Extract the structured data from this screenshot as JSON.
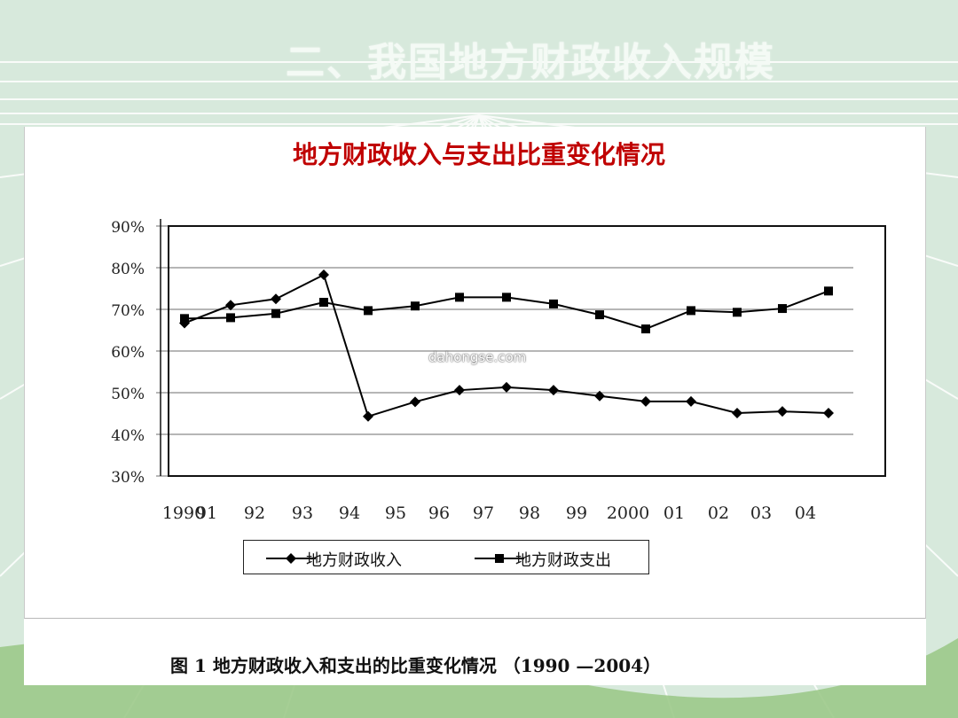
{
  "slide": {
    "title": "二、我国地方财政收入规模"
  },
  "watermark": "dahongse.com",
  "caption": "图 1    地方财政收入和支出的比重变化情况 （1990 —2004）",
  "colors": {
    "line": "#000000",
    "title_red": "#c00000",
    "grid": "#888888",
    "background": "#d7e9dc"
  },
  "chart_data": {
    "type": "line",
    "title": "地方财政收入与支出比重变化情况",
    "categories": [
      "1990",
      "91",
      "92",
      "93",
      "94",
      "95",
      "96",
      "97",
      "98",
      "99",
      "2000",
      "01",
      "02",
      "03",
      "04"
    ],
    "y_tick_labels": [
      "90%",
      "80%",
      "70%",
      "60%",
      "50%",
      "40%",
      "30%"
    ],
    "ylim": [
      30,
      90
    ],
    "grid": true,
    "legend_position": "bottom",
    "series": [
      {
        "name": "地方财政收入",
        "marker": "diamond",
        "values": [
          66.7,
          71,
          72.5,
          78.3,
          44.3,
          47.8,
          50.6,
          51.3,
          50.6,
          49.2,
          47.9,
          47.9,
          45.1,
          45.5,
          45.1
        ]
      },
      {
        "name": "地方财政支出",
        "marker": "square",
        "values": [
          67.8,
          68,
          69,
          71.7,
          69.7,
          70.8,
          72.9,
          72.9,
          71.3,
          68.7,
          65.3,
          69.7,
          69.3,
          70.2,
          74.4
        ]
      }
    ]
  }
}
